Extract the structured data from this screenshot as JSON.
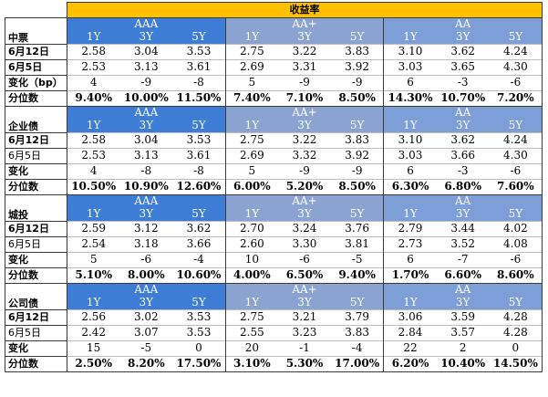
{
  "title": "收益率",
  "grade_labels": [
    "AAA",
    "AA+",
    "AA"
  ],
  "tenor_labels": [
    "1Y",
    "3Y",
    "5Y"
  ],
  "sections": [
    {
      "name": "中票",
      "rows": [
        {
          "label": "6月12日",
          "bold": true,
          "values": [
            "2.58",
            "3.04",
            "3.53",
            "2.75",
            "3.22",
            "3.83",
            "3.10",
            "3.62",
            "4.24"
          ]
        },
        {
          "label": "6月5日",
          "bold": true,
          "values": [
            "2.53",
            "3.13",
            "3.61",
            "2.69",
            "3.31",
            "3.92",
            "3.03",
            "3.65",
            "4.30"
          ]
        },
        {
          "label": "变化（bp）",
          "bold": true,
          "values": [
            "4",
            "-9",
            "-8",
            "5",
            "-9",
            "-9",
            "6",
            "-3",
            "-6"
          ]
        },
        {
          "label": "分位数",
          "bold": true,
          "pct": true,
          "values": [
            "9.40%",
            "10.00%",
            "11.50%",
            "7.40%",
            "7.10%",
            "8.50%",
            "14.30%",
            "10.70%",
            "7.20%"
          ]
        }
      ]
    },
    {
      "name": "企业债",
      "rows": [
        {
          "label": "6月12日",
          "bold": true,
          "values": [
            "2.58",
            "3.04",
            "3.53",
            "2.75",
            "3.22",
            "3.83",
            "3.10",
            "3.62",
            "4.24"
          ]
        },
        {
          "label": "6月5日",
          "bold": false,
          "values": [
            "2.53",
            "3.13",
            "3.61",
            "2.69",
            "3.32",
            "3.92",
            "3.03",
            "3.66",
            "4.30"
          ]
        },
        {
          "label": "变化",
          "bold": true,
          "values": [
            "4",
            "-8",
            "-8",
            "5",
            "-9",
            "-9",
            "6",
            "-3",
            "-6"
          ]
        },
        {
          "label": "分位数",
          "bold": true,
          "pct": true,
          "values": [
            "10.50%",
            "10.90%",
            "12.60%",
            "6.00%",
            "5.20%",
            "8.50%",
            "6.30%",
            "6.80%",
            "7.60%"
          ]
        }
      ]
    },
    {
      "name": "城投",
      "rows": [
        {
          "label": "6月12日",
          "bold": true,
          "values": [
            "2.59",
            "3.12",
            "3.62",
            "2.70",
            "3.24",
            "3.76",
            "2.79",
            "3.44",
            "4.02"
          ]
        },
        {
          "label": "6月5日",
          "bold": false,
          "values": [
            "2.54",
            "3.18",
            "3.66",
            "2.60",
            "3.30",
            "3.81",
            "2.73",
            "3.52",
            "4.08"
          ]
        },
        {
          "label": "变化",
          "bold": true,
          "values": [
            "5",
            "-6",
            "-4",
            "10",
            "-6",
            "-5",
            "6",
            "-7",
            "-6"
          ]
        },
        {
          "label": "分位数",
          "bold": true,
          "pct": true,
          "values": [
            "5.10%",
            "8.00%",
            "10.60%",
            "4.00%",
            "6.50%",
            "9.40%",
            "1.70%",
            "6.60%",
            "8.60%"
          ]
        }
      ]
    },
    {
      "name": "公司债",
      "rows": [
        {
          "label": "6月12日",
          "bold": true,
          "values": [
            "2.56",
            "3.02",
            "3.53",
            "2.75",
            "3.21",
            "3.79",
            "3.06",
            "3.59",
            "4.28"
          ]
        },
        {
          "label": "6月5日",
          "bold": false,
          "values": [
            "2.42",
            "3.07",
            "3.53",
            "2.55",
            "3.23",
            "3.83",
            "2.84",
            "3.57",
            "4.28"
          ]
        },
        {
          "label": "变化",
          "bold": true,
          "values": [
            "15",
            "-5",
            "0",
            "20",
            "-1",
            "-4",
            "22",
            "2",
            "0"
          ]
        },
        {
          "label": "分位数",
          "bold": true,
          "pct": true,
          "values": [
            "2.50%",
            "8.20%",
            "17.50%",
            "3.10%",
            "5.30%",
            "17.00%",
            "6.20%",
            "10.40%",
            "14.50%"
          ]
        }
      ]
    }
  ],
  "colors": {
    "title_bg": "#ffc000",
    "aaa_header": "#3d7dd6",
    "aa_plus_header": "#8aa3d0",
    "aa_header": "#7e9ed8",
    "header_text": "#ffffff"
  }
}
